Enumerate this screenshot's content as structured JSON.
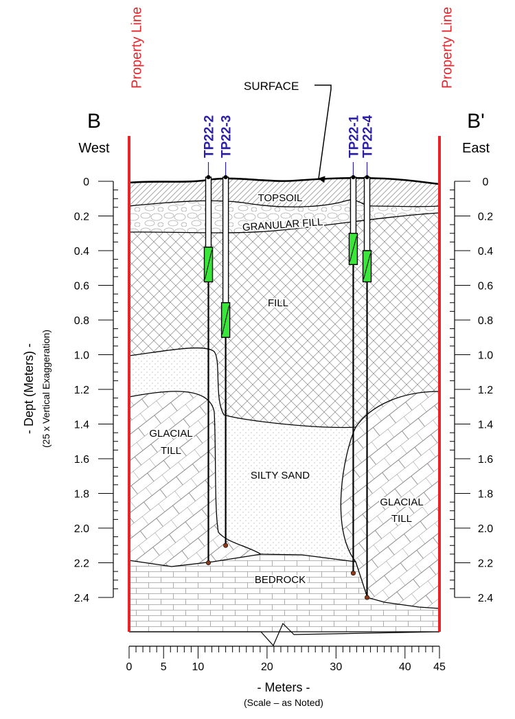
{
  "section": {
    "west_letter": "B",
    "east_letter": "B'",
    "west_label": "West",
    "east_label": "East",
    "property_line_label": "Property Line",
    "surface_label": "SURFACE"
  },
  "layers": {
    "topsoil": "TOPSOIL",
    "granular_fill": "GRANULAR FILL",
    "fill": "FILL",
    "glacial_till_west": [
      "GLACIAL",
      "TILL"
    ],
    "silty_sand": "SILTY SAND",
    "glacial_till_east": [
      "GLACIAL",
      "TILL"
    ],
    "bedrock": "BEDROCK"
  },
  "test_pits": [
    {
      "id": "TP22-2",
      "x_m": 11.5,
      "bottom_depth_m": 2.2,
      "screen_top_m": 0.38,
      "screen_bottom_m": 0.58
    },
    {
      "id": "TP22-3",
      "x_m": 14.0,
      "bottom_depth_m": 2.1,
      "screen_top_m": 0.7,
      "screen_bottom_m": 0.9
    },
    {
      "id": "TP22-1",
      "x_m": 32.5,
      "bottom_depth_m": 2.26,
      "screen_top_m": 0.3,
      "screen_bottom_m": 0.48
    },
    {
      "id": "TP22-4",
      "x_m": 34.5,
      "bottom_depth_m": 2.4,
      "screen_top_m": 0.4,
      "screen_bottom_m": 0.58
    }
  ],
  "depth_axis": {
    "title": "- Dept (Meters) -",
    "subtitle": "(25 x Vertical Exaggeration)",
    "ticks": [
      "0",
      "0.2",
      "0.4",
      "0.6",
      "0.8",
      "1.0",
      "1.2",
      "1.4",
      "1.6",
      "1.8",
      "2.0",
      "2.2",
      "2.4"
    ]
  },
  "distance_axis": {
    "title": "- Meters -",
    "subtitle": "(Scale – as Noted)",
    "ticks": [
      "0",
      "5",
      "10",
      "20",
      "30",
      "40",
      "45"
    ]
  },
  "colors": {
    "property_line": "#e8232a",
    "test_pit_label": "#2b1fa8",
    "screen": "#39e639",
    "pit_bottom": "#8b3a1a"
  }
}
